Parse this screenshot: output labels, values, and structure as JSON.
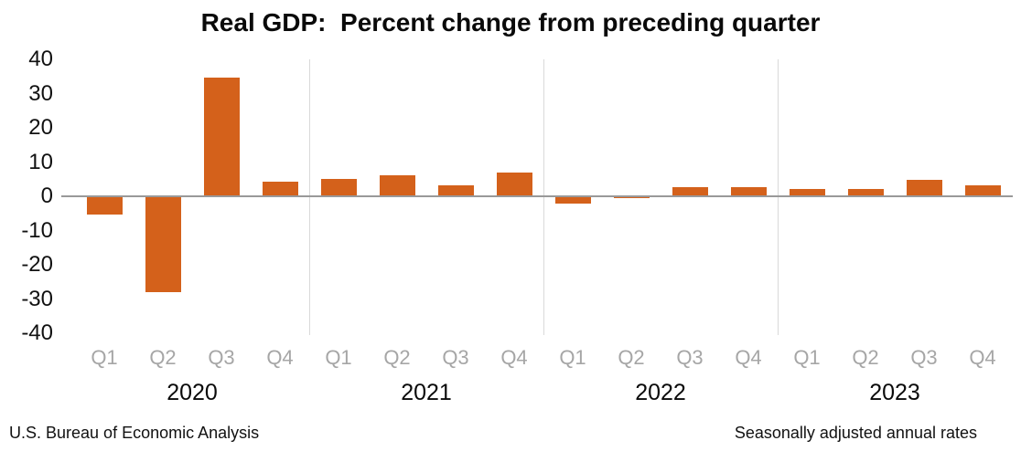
{
  "title": "Real GDP:  Percent change from preceding quarter",
  "footer": {
    "left": "U.S. Bureau of Economic Analysis",
    "right": "Seasonally adjusted annual rates"
  },
  "chart_data": {
    "type": "bar",
    "title": "Real GDP:  Percent change from preceding quarter",
    "categories": [
      "Q1",
      "Q2",
      "Q3",
      "Q4",
      "Q1",
      "Q2",
      "Q3",
      "Q4",
      "Q1",
      "Q2",
      "Q3",
      "Q4",
      "Q1",
      "Q2",
      "Q3",
      "Q4"
    ],
    "year_groups": [
      "2020",
      "2021",
      "2022",
      "2023"
    ],
    "values": [
      -5.3,
      -28.0,
      34.8,
      4.2,
      5.2,
      6.2,
      3.3,
      7.0,
      -2.0,
      -0.6,
      2.7,
      2.6,
      2.2,
      2.1,
      4.9,
      3.3
    ],
    "ylim": [
      -40,
      40
    ],
    "yticks": [
      40,
      30,
      20,
      10,
      0,
      -10,
      -20,
      -30,
      -40
    ],
    "grid": false,
    "legend": false,
    "year_separators": true,
    "colors": {
      "bar": "#D4611B",
      "zero_axis_line": "#999999",
      "year_separator": "#D9D9D9",
      "quarter_label": "#A6A6A6",
      "year_label": "#0a0a0a",
      "title": "#0a0a0a"
    }
  }
}
